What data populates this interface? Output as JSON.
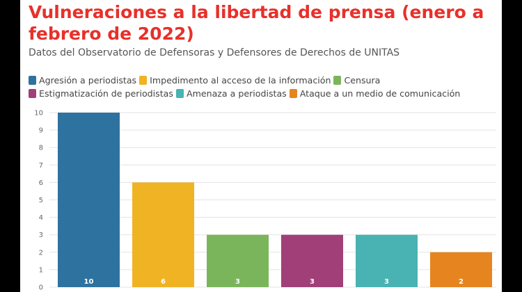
{
  "header": {
    "title": "Vulneraciones a la libertad de prensa (enero a febrero de 2022)",
    "subtitle": "Datos del Observatorio de Defensoras y Defensores de Derechos de UNITAS"
  },
  "chart_data": {
    "type": "bar",
    "categories": [
      "Agresión a periodistas",
      "Impedimento al acceso de la información",
      "Censura",
      "Estigmatización de periodistas",
      "Amenaza a periodistas",
      "Ataque a un medio de comunicación"
    ],
    "values": [
      10,
      6,
      3,
      3,
      3,
      2
    ],
    "colors": [
      "#2e72a0",
      "#f0b323",
      "#7ab55c",
      "#a03f78",
      "#48b3b2",
      "#e6851f"
    ],
    "ylim": [
      0,
      10
    ],
    "yticks": [
      "0",
      "1",
      "2",
      "3",
      "4",
      "5",
      "6",
      "7",
      "8",
      "9",
      "10"
    ],
    "data_labels": [
      "10",
      "6",
      "3",
      "3",
      "3",
      "2"
    ],
    "legend_position": "top",
    "grid": true
  }
}
